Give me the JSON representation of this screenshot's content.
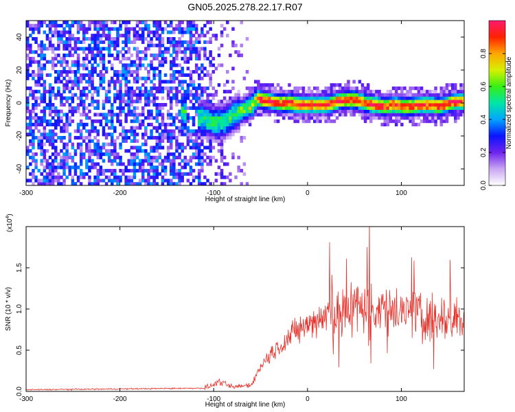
{
  "title": "GN05.2025.278.22.17.R07",
  "chart_data": [
    {
      "type": "heatmap",
      "xlabel": "Height of straight line (km)",
      "ylabel": "Frequency (Hz)",
      "xlim": [
        -300,
        167
      ],
      "ylim": [
        -50,
        50
      ],
      "xticks": [
        -300,
        -200,
        -100,
        0,
        100
      ],
      "yticks": [
        -40,
        -20,
        0,
        20,
        40
      ],
      "ridge": {
        "x": [
          -135,
          -110,
          -100,
          -90,
          -80,
          -70,
          -60,
          -55,
          -50,
          -40,
          -30,
          -20,
          -10,
          0,
          10,
          20,
          30,
          40,
          50,
          60,
          70,
          80,
          90,
          100,
          110,
          120,
          130,
          140,
          150,
          160,
          167
        ],
        "freq": [
          -7,
          -11,
          -13,
          -12,
          -8,
          -5,
          -2,
          2,
          1,
          0,
          -1,
          -1,
          -2,
          -2,
          -2,
          -2,
          0,
          1,
          1,
          -1,
          -2,
          -3,
          -2,
          -3,
          -3,
          -2,
          -2,
          -3,
          -1,
          0,
          0
        ]
      },
      "colorbar": {
        "label": "Normalized spectral amplitude",
        "range": [
          0,
          1
        ],
        "ticks": [
          0.0,
          0.2,
          0.4,
          0.6,
          0.8
        ],
        "tick_labels": [
          "0.0",
          "0.2",
          "0.4",
          "0.6",
          "0.8"
        ]
      }
    },
    {
      "type": "line",
      "xlabel": "Height of straight line (km)",
      "ylabel": "SNR (10 * v/v)",
      "scale_label": "(x10",
      "scale_exp": "4",
      "xlim": [
        -300,
        167
      ],
      "ylim": [
        0,
        20000
      ],
      "xticks": [
        -300,
        -200,
        -100,
        0,
        100
      ],
      "yticks": [
        0,
        5000,
        10000,
        15000
      ],
      "ytick_labels": [
        "0.0",
        "0.5",
        "1.0",
        "1.5"
      ],
      "color": "#e8312a",
      "series": [
        {
          "name": "SNR",
          "x": [
            -300,
            -200,
            -110,
            -100,
            -95,
            -80,
            -60,
            -50,
            -40,
            -30,
            -20,
            -10,
            0,
            10,
            20,
            30,
            40,
            50,
            60,
            70,
            80,
            90,
            100,
            110,
            120,
            130,
            140,
            150,
            160,
            167
          ],
          "values": [
            200,
            300,
            400,
            800,
            1200,
            500,
            800,
            3000,
            4500,
            5500,
            6500,
            7500,
            8000,
            8800,
            9300,
            9600,
            9800,
            10200,
            10500,
            10300,
            10000,
            10000,
            9700,
            9600,
            9400,
            9100,
            9000,
            8900,
            8700,
            8800
          ]
        }
      ]
    }
  ]
}
